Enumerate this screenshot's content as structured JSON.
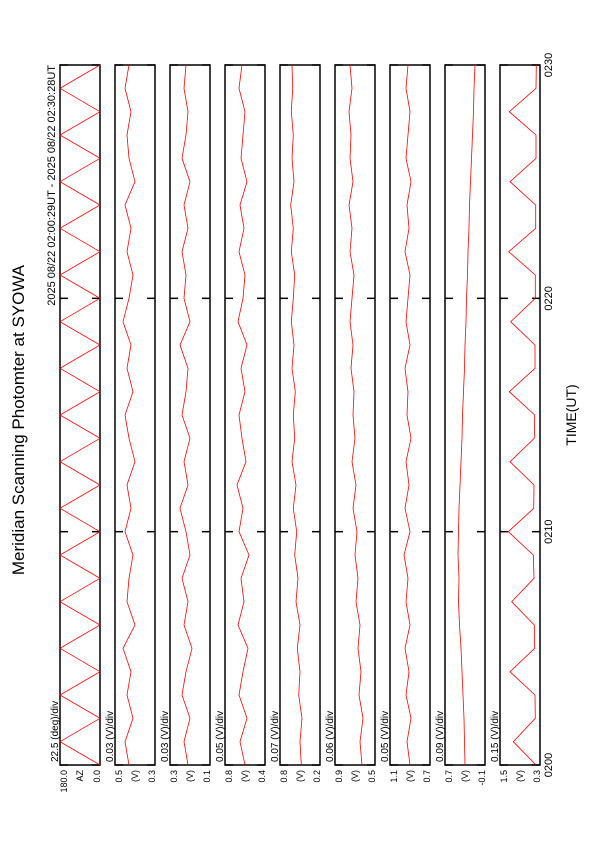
{
  "chart_data": {
    "type": "line",
    "title": "Meridian Scanning Photomter at SYOWA",
    "subtitle": "2025 08/22 02:00:29UT - 2025 08/22 02:30:28UT",
    "xlabel": "TIME(UT)",
    "xlim": [
      0,
      30
    ],
    "xticks": [
      {
        "value": 0,
        "label": "0200"
      },
      {
        "value": 10,
        "label": "0210"
      },
      {
        "value": 20,
        "label": "0220"
      },
      {
        "value": 30,
        "label": "0230"
      }
    ],
    "x": [
      0,
      1,
      2,
      3,
      4,
      5,
      6,
      7,
      8,
      9,
      10,
      11,
      12,
      13,
      14,
      15,
      16,
      17,
      18,
      19,
      20,
      21,
      22,
      23,
      24,
      25,
      26,
      27,
      28,
      29,
      30
    ],
    "color": "#ff0000",
    "panels": [
      {
        "scale_label": "22.5 (deg)/div",
        "ylabel": "AZ",
        "ylim": [
          0,
          180
        ],
        "yticks": [
          {
            "value": 0,
            "label": "0.0"
          },
          {
            "value": 180,
            "label": "180.0"
          }
        ],
        "values": [
          0,
          180,
          0,
          180,
          0,
          180,
          0,
          180,
          0,
          180,
          0,
          180,
          0,
          180,
          0,
          180,
          0,
          180,
          0,
          180,
          0,
          180,
          0,
          180,
          0,
          180,
          0,
          180,
          0,
          180,
          0
        ]
      },
      {
        "scale_label": "0.03 (V)/div",
        "ylabel": "(V)",
        "ylim": [
          0.3,
          0.5
        ],
        "yticks": [
          0.3,
          0.5
        ],
        "values": [
          0.43,
          0.45,
          0.41,
          0.44,
          0.42,
          0.46,
          0.4,
          0.44,
          0.43,
          0.41,
          0.45,
          0.42,
          0.44,
          0.4,
          0.43,
          0.45,
          0.41,
          0.44,
          0.42,
          0.46,
          0.43,
          0.41,
          0.44,
          0.42,
          0.45,
          0.4,
          0.43,
          0.44,
          0.42,
          0.45,
          0.43
        ]
      },
      {
        "scale_label": "0.03 (V)/div",
        "ylabel": "(V)",
        "ylim": [
          0.1,
          0.3
        ],
        "yticks": [
          0.1,
          0.3
        ],
        "values": [
          0.21,
          0.23,
          0.2,
          0.24,
          0.22,
          0.19,
          0.23,
          0.21,
          0.24,
          0.2,
          0.22,
          0.25,
          0.21,
          0.23,
          0.2,
          0.24,
          0.22,
          0.21,
          0.25,
          0.2,
          0.23,
          0.22,
          0.24,
          0.21,
          0.23,
          0.2,
          0.24,
          0.22,
          0.21,
          0.23,
          0.22
        ]
      },
      {
        "scale_label": "0.05 (V)/div",
        "ylabel": "(V)",
        "ylim": [
          0.4,
          0.8
        ],
        "yticks": [
          0.4,
          0.8
        ],
        "values": [
          0.6,
          0.65,
          0.58,
          0.66,
          0.62,
          0.57,
          0.67,
          0.61,
          0.64,
          0.56,
          0.66,
          0.62,
          0.68,
          0.59,
          0.63,
          0.66,
          0.6,
          0.64,
          0.58,
          0.67,
          0.62,
          0.6,
          0.66,
          0.61,
          0.65,
          0.58,
          0.64,
          0.62,
          0.6,
          0.66,
          0.63
        ]
      },
      {
        "scale_label": "0.07 (V)/div",
        "ylabel": "(V)",
        "ylim": [
          0.2,
          0.8
        ],
        "yticks": [
          0.2,
          0.8
        ],
        "values": [
          0.48,
          0.5,
          0.47,
          0.52,
          0.5,
          0.54,
          0.5,
          0.56,
          0.53,
          0.58,
          0.55,
          0.6,
          0.56,
          0.62,
          0.58,
          0.6,
          0.57,
          0.62,
          0.59,
          0.63,
          0.6,
          0.58,
          0.63,
          0.6,
          0.64,
          0.59,
          0.62,
          0.6,
          0.63,
          0.61,
          0.62
        ]
      },
      {
        "scale_label": "0.06 (V)/div",
        "ylabel": "(V)",
        "ylim": [
          0.5,
          0.9
        ],
        "yticks": [
          0.5,
          0.9
        ],
        "values": [
          0.63,
          0.65,
          0.62,
          0.66,
          0.64,
          0.67,
          0.65,
          0.69,
          0.67,
          0.7,
          0.68,
          0.72,
          0.69,
          0.73,
          0.7,
          0.72,
          0.71,
          0.74,
          0.72,
          0.75,
          0.73,
          0.71,
          0.75,
          0.73,
          0.76,
          0.72,
          0.75,
          0.74,
          0.76,
          0.73,
          0.75
        ]
      },
      {
        "scale_label": "0.05 (V)/div",
        "ylabel": "(V)",
        "ylim": [
          0.7,
          1.1
        ],
        "yticks": [
          0.7,
          1.1
        ],
        "values": [
          0.9,
          0.93,
          0.89,
          0.94,
          0.91,
          0.95,
          0.9,
          0.94,
          0.92,
          0.96,
          0.9,
          0.95,
          0.91,
          0.94,
          0.89,
          0.93,
          0.92,
          0.95,
          0.9,
          0.94,
          0.92,
          0.9,
          0.95,
          0.91,
          0.93,
          0.89,
          0.94,
          0.92,
          0.9,
          0.94,
          0.92
        ]
      },
      {
        "scale_label": "0.09 (V)/div",
        "ylabel": "(V)",
        "ylim": [
          -0.1,
          0.7
        ],
        "yticks": [
          -0.1,
          0.7
        ],
        "values": [
          0.3,
          0.31,
          0.32,
          0.34,
          0.36,
          0.38,
          0.41,
          0.43,
          0.42,
          0.44,
          0.43,
          0.42,
          0.4,
          0.38,
          0.36,
          0.35,
          0.33,
          0.31,
          0.3,
          0.28,
          0.27,
          0.25,
          0.24,
          0.22,
          0.21,
          0.19,
          0.17,
          0.15,
          0.13,
          0.12,
          0.1
        ]
      },
      {
        "scale_label": "0.15 (V)/div",
        "ylabel": "(V)",
        "ylim": [
          0.3,
          1.5
        ],
        "yticks": [
          0.3,
          1.5
        ],
        "values": [
          0.42,
          1.1,
          0.44,
          0.45,
          1.2,
          0.46,
          0.47,
          1.15,
          0.48,
          0.5,
          1.25,
          0.49,
          0.48,
          1.2,
          0.47,
          0.46,
          1.22,
          0.45,
          0.45,
          1.18,
          0.44,
          0.44,
          1.24,
          0.43,
          0.43,
          1.2,
          0.42,
          0.42,
          1.22,
          0.42,
          0.41
        ]
      }
    ]
  }
}
